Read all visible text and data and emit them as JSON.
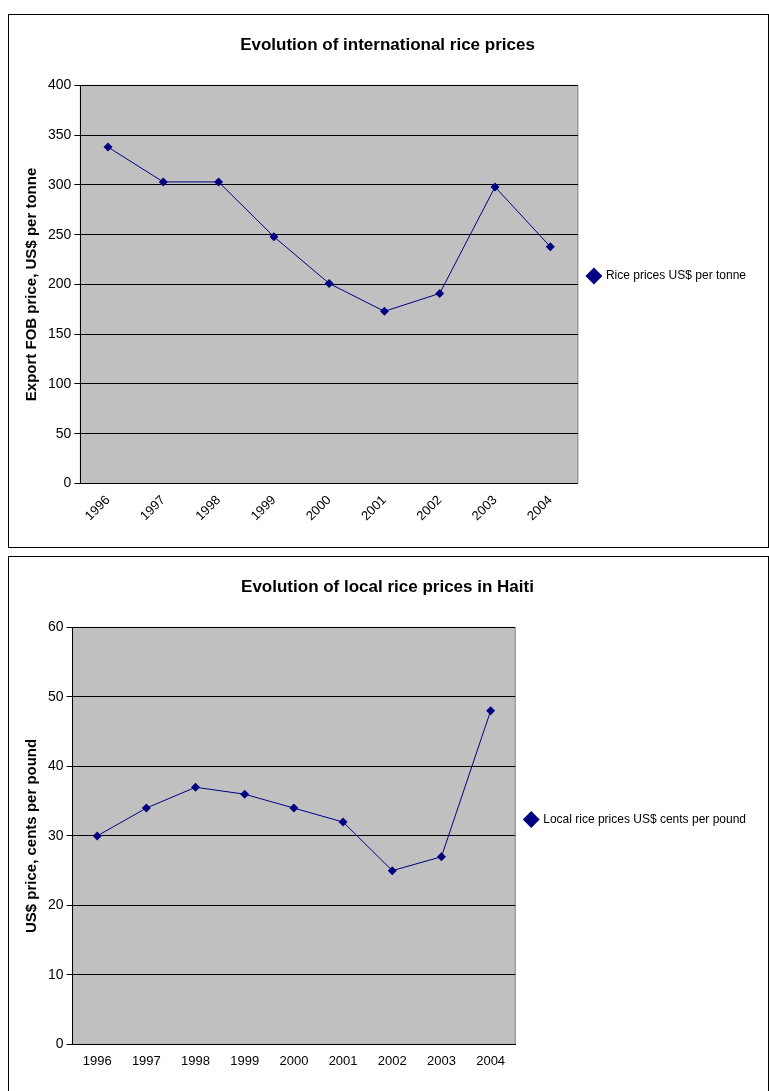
{
  "chart_data": [
    {
      "type": "line",
      "title": "Evolution of international rice prices",
      "ylabel": "Export FOB price, US$ per tonne",
      "categories": [
        "1996",
        "1997",
        "1998",
        "1999",
        "2000",
        "2001",
        "2002",
        "2003",
        "2004"
      ],
      "series": [
        {
          "name": "Rice prices US$ per tonne",
          "color": "#000080",
          "values": [
            338,
            303,
            303,
            248,
            201,
            173,
            191,
            298,
            238
          ]
        }
      ],
      "ylim": [
        0,
        400
      ],
      "yticks": [
        0,
        50,
        100,
        150,
        200,
        250,
        300,
        350,
        400
      ],
      "grid": "y",
      "legend": "right",
      "marker": "diamond",
      "line_style": "solid"
    },
    {
      "type": "line",
      "title": "Evolution of local rice prices in Haiti",
      "ylabel": "US$ price, cents per pound",
      "categories": [
        "1996",
        "1997",
        "1998",
        "1999",
        "2000",
        "2001",
        "2002",
        "2003",
        "2004"
      ],
      "series": [
        {
          "name": "Local rice prices US$ cents per pound",
          "color": "#000080",
          "values": [
            30,
            34,
            37,
            36,
            34,
            32,
            25,
            27,
            48
          ]
        }
      ],
      "ylim": [
        0,
        60
      ],
      "yticks": [
        0,
        10,
        20,
        30,
        40,
        50,
        60
      ],
      "grid": "y",
      "legend": "right",
      "marker": "diamond",
      "line_style": "solid"
    }
  ]
}
